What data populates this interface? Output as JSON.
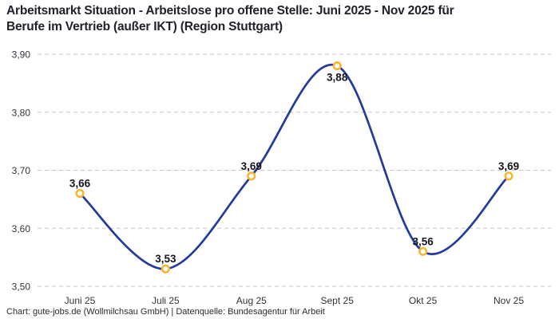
{
  "header": {
    "title": "Arbeitsmarkt Situation - Arbeitslose pro offene Stelle: Juni 2025 - Nov 2025 für Berufe im Vertrieb (außer IKT) (Region Stuttgart)",
    "title_lines": [
      "Arbeitsmarkt Situation - Arbeitslose pro offene Stelle: Juni 2025 - Nov 2025 für",
      "Berufe im Vertrieb (außer IKT) (Region Stuttgart)"
    ]
  },
  "footer": {
    "credit": "Chart: gute-jobs.de (Wollmilchsau GmbH) | Datenquelle: Bundesagentur für Arbeit"
  },
  "colors": {
    "line": "#253a9d",
    "marker": "#f8b62d",
    "grid": "#c6c6c6",
    "text": "#21212b"
  },
  "chart_data": {
    "type": "line",
    "title": "Arbeitsmarkt Situation - Arbeitslose pro offene Stelle: Juni 2025 - Nov 2025 für Berufe im Vertrieb (außer IKT) (Region Stuttgart)",
    "categories": [
      "Juni 25",
      "Juli 25",
      "Aug 25",
      "Sept 25",
      "Okt 25",
      "Nov 25"
    ],
    "values": [
      3.66,
      3.53,
      3.69,
      3.88,
      3.56,
      3.69
    ],
    "value_labels": [
      "3,66",
      "3,53",
      "3,69",
      "3,88",
      "3,56",
      "3,69"
    ],
    "label_positions": [
      "above",
      "above",
      "above",
      "below",
      "above",
      "above"
    ],
    "xlabel": "",
    "ylabel": "",
    "ylim": [
      3.5,
      3.9
    ],
    "yticks": {
      "values": [
        3.5,
        3.6,
        3.7,
        3.8,
        3.9
      ],
      "labels": [
        "3,50",
        "3,60",
        "3,70",
        "3,80",
        "3,90"
      ]
    },
    "grid": "horizontal-dashed",
    "legend": "none",
    "curve": "smooth",
    "source": "Chart: gute-jobs.de (Wollmilchsau GmbH) | Datenquelle: Bundesagentur für Arbeit"
  }
}
